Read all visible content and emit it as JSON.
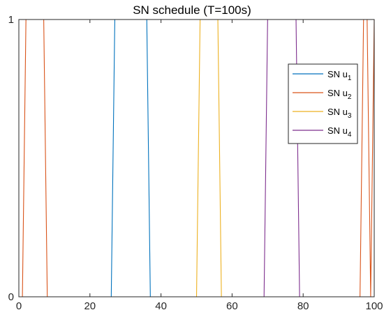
{
  "chart_data": {
    "type": "line",
    "title": "SN schedule (T=100s)",
    "xlabel": "",
    "ylabel": "",
    "xlim": [
      0,
      100
    ],
    "ylim": [
      0,
      1
    ],
    "xticks": [
      0,
      20,
      40,
      60,
      80,
      100
    ],
    "yticks": [
      0,
      1
    ],
    "grid": false,
    "legend_position": "top-right",
    "series": [
      {
        "name": "SN u1",
        "base": "SN u",
        "subscript": "1",
        "color": "#0072BD",
        "x": [
          0,
          26,
          27,
          36,
          37,
          100
        ],
        "y": [
          0,
          0,
          1,
          1,
          0,
          0
        ]
      },
      {
        "name": "SN u2",
        "base": "SN u",
        "subscript": "2",
        "color": "#D95319",
        "x": [
          0,
          1,
          2,
          7,
          8,
          96,
          97,
          98,
          99,
          100
        ],
        "y": [
          0,
          0,
          1,
          1,
          0,
          0,
          1,
          1,
          0,
          1
        ]
      },
      {
        "name": "SN u3",
        "base": "SN u",
        "subscript": "3",
        "color": "#EDB120",
        "x": [
          0,
          50,
          51,
          56,
          57,
          100
        ],
        "y": [
          0,
          0,
          1,
          1,
          0,
          0
        ]
      },
      {
        "name": "SN u4",
        "base": "SN u",
        "subscript": "4",
        "color": "#7E2F8E",
        "x": [
          0,
          69,
          70,
          78,
          79,
          100
        ],
        "y": [
          0,
          0,
          1,
          1,
          0,
          0
        ]
      }
    ]
  }
}
